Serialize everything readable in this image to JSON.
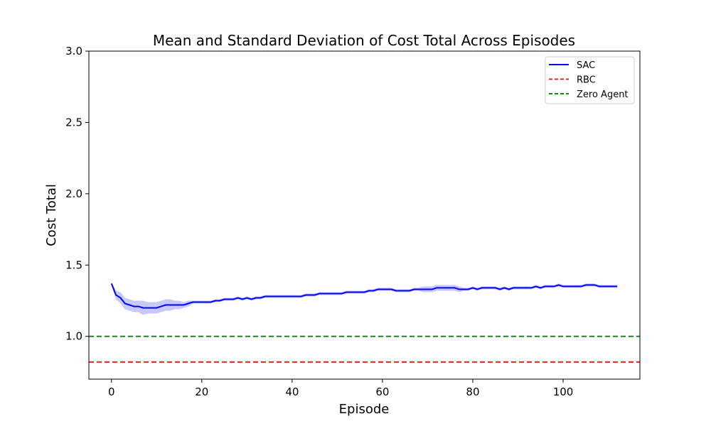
{
  "chart_data": {
    "type": "line",
    "title": "Mean and Standard Deviation of Cost Total Across Episodes",
    "xlabel": "Episode",
    "ylabel": "Cost Total",
    "xlim": [
      -5,
      117
    ],
    "ylim": [
      0.7,
      3.0
    ],
    "xticks": [
      0,
      20,
      40,
      60,
      80,
      100
    ],
    "yticks": [
      1.0,
      1.5,
      2.0,
      2.5,
      3.0
    ],
    "grid": false,
    "legend_position": "top-right",
    "series": [
      {
        "name": "SAC",
        "style": "solid",
        "color": "#0000ff",
        "band_color": "#c8c8fb",
        "x": [
          0,
          1,
          2,
          3,
          4,
          5,
          6,
          7,
          8,
          9,
          10,
          11,
          12,
          13,
          14,
          15,
          16,
          17,
          18,
          19,
          20,
          21,
          22,
          23,
          24,
          25,
          26,
          27,
          28,
          29,
          30,
          31,
          32,
          33,
          34,
          35,
          36,
          37,
          38,
          39,
          40,
          41,
          42,
          43,
          44,
          45,
          46,
          47,
          48,
          49,
          50,
          51,
          52,
          53,
          54,
          55,
          56,
          57,
          58,
          59,
          60,
          61,
          62,
          63,
          64,
          65,
          66,
          67,
          68,
          69,
          70,
          71,
          72,
          73,
          74,
          75,
          76,
          77,
          78,
          79,
          80,
          81,
          82,
          83,
          84,
          85,
          86,
          87,
          88,
          89,
          90,
          91,
          92,
          93,
          94,
          95,
          96,
          97,
          98,
          99,
          100,
          101,
          102,
          103,
          104,
          105,
          106,
          107,
          108,
          109,
          110,
          111,
          112
        ],
        "mean": [
          1.37,
          1.29,
          1.27,
          1.23,
          1.22,
          1.21,
          1.21,
          1.2,
          1.2,
          1.2,
          1.2,
          1.21,
          1.22,
          1.22,
          1.22,
          1.22,
          1.22,
          1.23,
          1.24,
          1.24,
          1.24,
          1.24,
          1.24,
          1.25,
          1.25,
          1.26,
          1.26,
          1.26,
          1.27,
          1.26,
          1.27,
          1.26,
          1.27,
          1.27,
          1.28,
          1.28,
          1.28,
          1.28,
          1.28,
          1.28,
          1.28,
          1.28,
          1.28,
          1.29,
          1.29,
          1.29,
          1.3,
          1.3,
          1.3,
          1.3,
          1.3,
          1.3,
          1.31,
          1.31,
          1.31,
          1.31,
          1.31,
          1.32,
          1.32,
          1.33,
          1.33,
          1.33,
          1.33,
          1.32,
          1.32,
          1.32,
          1.32,
          1.33,
          1.33,
          1.33,
          1.33,
          1.33,
          1.34,
          1.34,
          1.34,
          1.34,
          1.34,
          1.33,
          1.33,
          1.33,
          1.34,
          1.33,
          1.34,
          1.34,
          1.34,
          1.34,
          1.33,
          1.34,
          1.33,
          1.34,
          1.34,
          1.34,
          1.34,
          1.34,
          1.35,
          1.34,
          1.35,
          1.35,
          1.35,
          1.36,
          1.35,
          1.35,
          1.35,
          1.35,
          1.35,
          1.36,
          1.36,
          1.36,
          1.35,
          1.35,
          1.35,
          1.35,
          1.35
        ],
        "std": [
          0.01,
          0.03,
          0.04,
          0.04,
          0.04,
          0.04,
          0.04,
          0.05,
          0.04,
          0.04,
          0.04,
          0.04,
          0.04,
          0.04,
          0.03,
          0.03,
          0.02,
          0.02,
          0.01,
          0.01,
          0.01,
          0.01,
          0.01,
          0.01,
          0.01,
          0.01,
          0.01,
          0.01,
          0.01,
          0.01,
          0.01,
          0.01,
          0.01,
          0.01,
          0.01,
          0.01,
          0.01,
          0.01,
          0.01,
          0.01,
          0.01,
          0.01,
          0.01,
          0.01,
          0.01,
          0.01,
          0.01,
          0.01,
          0.01,
          0.01,
          0.01,
          0.01,
          0.01,
          0.01,
          0.01,
          0.01,
          0.01,
          0.01,
          0.01,
          0.01,
          0.01,
          0.01,
          0.01,
          0.01,
          0.01,
          0.01,
          0.01,
          0.01,
          0.01,
          0.02,
          0.02,
          0.02,
          0.02,
          0.02,
          0.02,
          0.02,
          0.02,
          0.02,
          0.01,
          0.01,
          0.01,
          0.01,
          0.01,
          0.01,
          0.01,
          0.01,
          0.01,
          0.01,
          0.01,
          0.01,
          0.01,
          0.01,
          0.01,
          0.01,
          0.01,
          0.01,
          0.01,
          0.01,
          0.01,
          0.01,
          0.01,
          0.01,
          0.01,
          0.01,
          0.01,
          0.01,
          0.01,
          0.01,
          0.01,
          0.01,
          0.01,
          0.01,
          0.01
        ]
      },
      {
        "name": "RBC",
        "style": "dashed",
        "color": "#e8221e",
        "y": 0.82
      },
      {
        "name": "Zero Agent",
        "style": "dashed",
        "color": "#188a18",
        "y": 1.0
      }
    ]
  }
}
